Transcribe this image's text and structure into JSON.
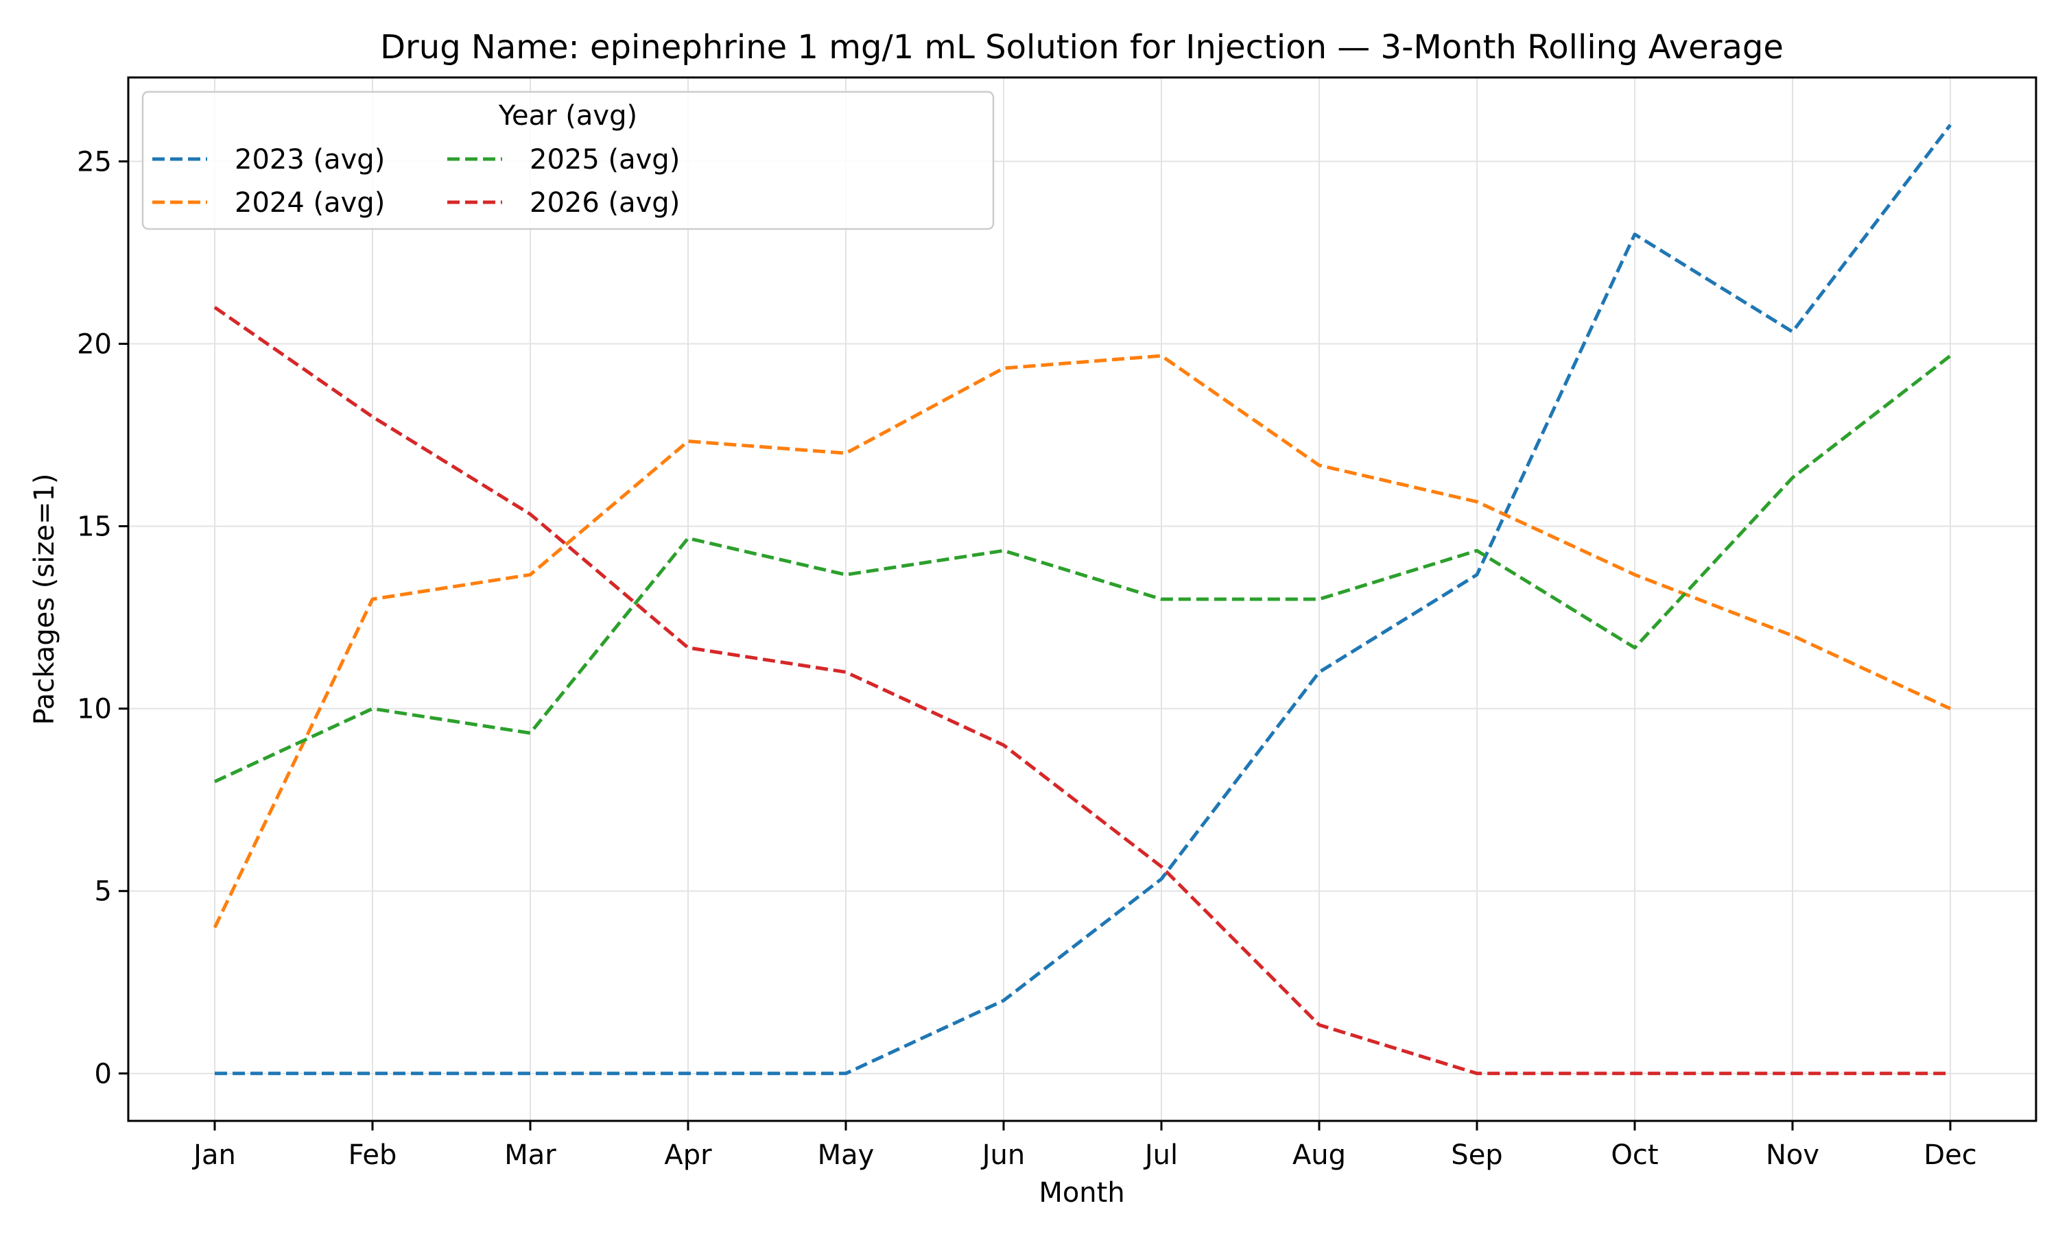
{
  "chart_data": {
    "type": "line",
    "title": "Drug Name: epinephrine 1 mg/1 mL Solution for Injection — 3-Month Rolling Average",
    "xlabel": "Month",
    "ylabel": "Packages (size=1)",
    "categories": [
      "Jan",
      "Feb",
      "Mar",
      "Apr",
      "May",
      "Jun",
      "Jul",
      "Aug",
      "Sep",
      "Oct",
      "Nov",
      "Dec"
    ],
    "ylim": [
      -1.3,
      27.3
    ],
    "yticks": [
      0,
      5,
      10,
      15,
      20,
      25
    ],
    "grid": true,
    "legend": {
      "title": "Year (avg)",
      "placement": "top-left",
      "columns": 3
    },
    "series": [
      {
        "name": "2023 (avg)",
        "color": "#1f77b4",
        "values": [
          0,
          0,
          0,
          0,
          0,
          2.0,
          5.33,
          11.0,
          13.67,
          23.0,
          20.33,
          26.0
        ]
      },
      {
        "name": "2024 (avg)",
        "color": "#ff7f0e",
        "values": [
          4.0,
          13.0,
          13.67,
          17.33,
          17.0,
          19.33,
          19.67,
          16.67,
          15.67,
          13.67,
          12.0,
          10.0
        ]
      },
      {
        "name": "2025 (avg)",
        "color": "#2ca02c",
        "values": [
          8.0,
          10.0,
          9.33,
          14.67,
          13.67,
          14.33,
          13.0,
          13.0,
          14.33,
          11.67,
          16.33,
          19.67
        ]
      },
      {
        "name": "2026 (avg)",
        "color": "#d62728",
        "values": [
          21.0,
          18.0,
          15.33,
          11.67,
          11.0,
          9.0,
          5.67,
          1.33,
          0,
          0,
          0,
          0
        ]
      }
    ]
  }
}
